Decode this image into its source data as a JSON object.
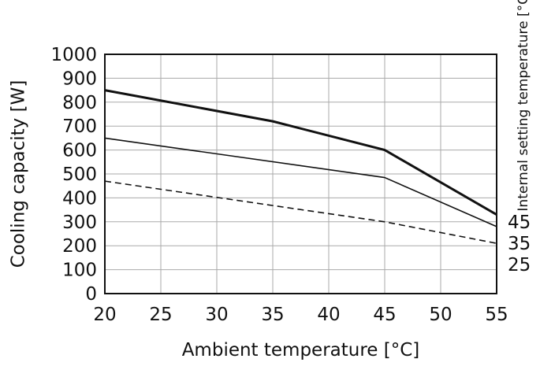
{
  "chart_data": {
    "type": "line",
    "title": "",
    "xlabel": "Ambient temperature [°C]",
    "ylabel": "Cooling capacity [W]",
    "right_label": "Internal setting temperature [°C]",
    "xlim": [
      20,
      55
    ],
    "ylim": [
      0,
      1000
    ],
    "x_ticks": [
      20,
      25,
      30,
      35,
      40,
      45,
      50,
      55
    ],
    "y_ticks": [
      0,
      100,
      200,
      300,
      400,
      500,
      600,
      700,
      800,
      900,
      1000
    ],
    "grid": true,
    "series": [
      {
        "name": "45",
        "style": "thick",
        "x": [
          20,
          35,
          45,
          55
        ],
        "y": [
          850,
          720,
          600,
          330
        ]
      },
      {
        "name": "35",
        "style": "solid",
        "x": [
          20,
          45,
          55
        ],
        "y": [
          650,
          485,
          280
        ]
      },
      {
        "name": "25",
        "style": "dashed",
        "x": [
          20,
          45,
          55
        ],
        "y": [
          470,
          300,
          210
        ]
      }
    ]
  }
}
